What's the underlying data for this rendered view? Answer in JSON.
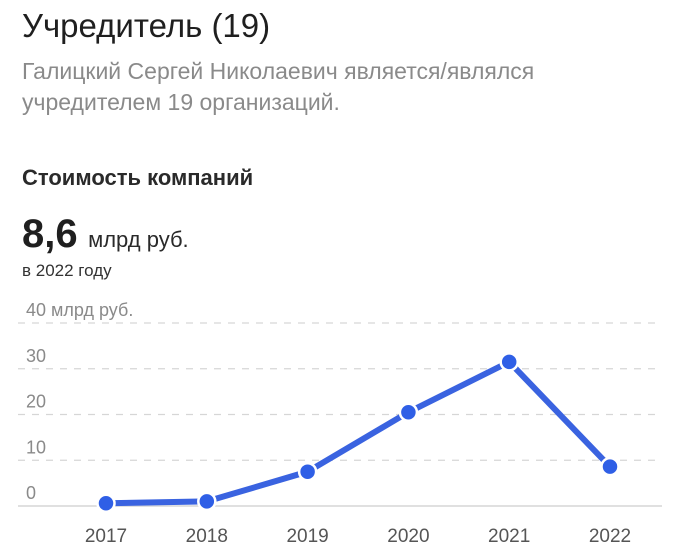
{
  "header": {
    "title": "Учредитель (19)",
    "description": "Галицкий Сергей Николаевич является/являлся учредителем 19 организаций."
  },
  "summary": {
    "section_title": "Стоимость компаний",
    "value": "8,6",
    "unit": "млрд руб.",
    "note": "в 2022 году"
  },
  "colors": {
    "line": "#3a63e0",
    "point": "#2f5fe6",
    "grid": "#d6d6d6",
    "axis_text": "#8a8a8a"
  },
  "chart_data": {
    "type": "line",
    "x": [
      "2017",
      "2018",
      "2019",
      "2020",
      "2021",
      "2022"
    ],
    "series": [
      {
        "values": [
          0.6,
          1.0,
          7.5,
          20.5,
          31.5,
          8.6
        ]
      }
    ],
    "y_ticks": [
      "40 млрд руб.",
      "30",
      "20",
      "10",
      "0"
    ],
    "y_tick_values": [
      40,
      30,
      20,
      10,
      0
    ],
    "ylim": [
      0,
      40
    ],
    "grid": true
  }
}
